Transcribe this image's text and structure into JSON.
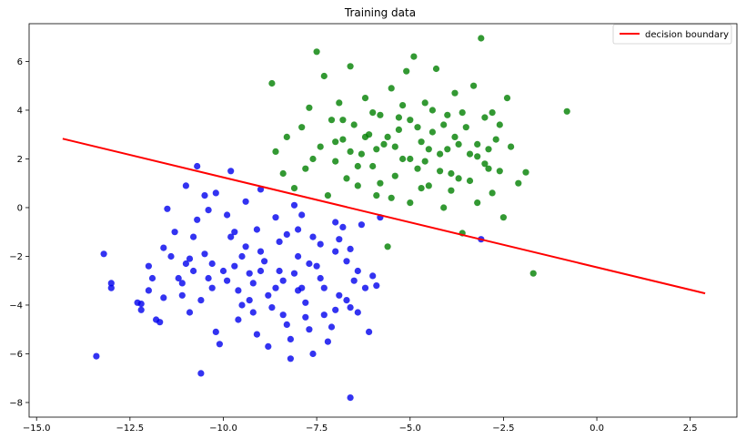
{
  "chart_data": {
    "type": "scatter",
    "title": "Training data",
    "xlabel": "",
    "ylabel": "",
    "xlim": [
      -15.2,
      3.75
    ],
    "ylim": [
      -8.6,
      7.55
    ],
    "x_ticks": [
      -15.0,
      -12.5,
      -10.0,
      -7.5,
      -5.0,
      -2.5,
      0.0,
      2.5
    ],
    "x_tick_labels": [
      "−15.0",
      "−12.5",
      "−10.0",
      "−7.5",
      "−5.0",
      "−2.5",
      "0.0",
      "2.5"
    ],
    "y_ticks": [
      -8,
      -6,
      -4,
      -2,
      0,
      2,
      4,
      6
    ],
    "y_tick_labels": [
      "−8",
      "−6",
      "−4",
      "−2",
      "0",
      "2",
      "4",
      "6"
    ],
    "grid": false,
    "legend_position": "top-right",
    "legend": [
      {
        "label": "decision boundary",
        "color": "#ff0000",
        "kind": "line"
      }
    ],
    "line": {
      "name": "decision boundary",
      "color": "#ff0000",
      "x": [
        -14.3,
        2.9
      ],
      "y": [
        2.83,
        -3.52
      ]
    },
    "series": [
      {
        "color": "#0000ee",
        "points": [
          [
            -13.4,
            -6.1
          ],
          [
            -13.2,
            -1.9
          ],
          [
            -13.0,
            -3.1
          ],
          [
            -13.0,
            -3.3
          ],
          [
            -12.2,
            -4.2
          ],
          [
            -12.2,
            -3.95
          ],
          [
            -12.0,
            -2.4
          ],
          [
            -12.0,
            -3.4
          ],
          [
            -11.8,
            -4.6
          ],
          [
            -11.7,
            -4.7
          ],
          [
            -11.6,
            -1.65
          ],
          [
            -11.5,
            -0.05
          ],
          [
            -11.2,
            -2.9
          ],
          [
            -11.1,
            -3.6
          ],
          [
            -11.0,
            0.9
          ],
          [
            -11.0,
            -2.3
          ],
          [
            -10.9,
            -2.1
          ],
          [
            -10.8,
            -2.6
          ],
          [
            -10.7,
            1.7
          ],
          [
            -10.7,
            -0.5
          ],
          [
            -10.6,
            -6.8
          ],
          [
            -10.5,
            0.5
          ],
          [
            -10.5,
            -1.9
          ],
          [
            -10.4,
            -2.9
          ],
          [
            -10.3,
            -3.3
          ],
          [
            -10.2,
            -5.1
          ],
          [
            -10.2,
            0.6
          ],
          [
            -10.0,
            -2.6
          ],
          [
            -9.9,
            -3.0
          ],
          [
            -9.8,
            1.5
          ],
          [
            -9.8,
            -1.2
          ],
          [
            -9.7,
            -2.4
          ],
          [
            -9.6,
            -3.4
          ],
          [
            -9.5,
            -4.0
          ],
          [
            -9.4,
            0.25
          ],
          [
            -9.4,
            -1.6
          ],
          [
            -9.3,
            -2.7
          ],
          [
            -9.2,
            -3.1
          ],
          [
            -9.1,
            -5.2
          ],
          [
            -9.0,
            0.75
          ],
          [
            -9.0,
            -1.8
          ],
          [
            -8.9,
            -2.2
          ],
          [
            -8.8,
            -3.6
          ],
          [
            -8.7,
            -4.1
          ],
          [
            -8.6,
            -0.4
          ],
          [
            -8.5,
            -1.4
          ],
          [
            -8.5,
            -2.6
          ],
          [
            -8.4,
            -3.0
          ],
          [
            -8.3,
            -4.8
          ],
          [
            -8.2,
            -6.2
          ],
          [
            -8.1,
            0.1
          ],
          [
            -8.0,
            -0.9
          ],
          [
            -8.0,
            -2.0
          ],
          [
            -7.9,
            -3.3
          ],
          [
            -7.8,
            -3.9
          ],
          [
            -7.7,
            -5.0
          ],
          [
            -7.6,
            -1.2
          ],
          [
            -7.5,
            -2.4
          ],
          [
            -7.4,
            -2.9
          ],
          [
            -7.3,
            -4.4
          ],
          [
            -7.2,
            -5.5
          ],
          [
            -7.0,
            -0.6
          ],
          [
            -7.0,
            -1.8
          ],
          [
            -6.9,
            -3.6
          ],
          [
            -6.8,
            -0.8
          ],
          [
            -6.7,
            -2.2
          ],
          [
            -6.6,
            -4.1
          ],
          [
            -6.6,
            -7.8
          ],
          [
            -6.5,
            -3.0
          ],
          [
            -6.3,
            -0.7
          ],
          [
            -6.2,
            -3.3
          ],
          [
            -6.1,
            -5.1
          ],
          [
            -6.0,
            -2.8
          ],
          [
            -5.9,
            -3.2
          ],
          [
            -5.8,
            -0.4
          ],
          [
            -3.1,
            -1.3
          ],
          [
            -11.3,
            -1.0
          ],
          [
            -10.9,
            -4.3
          ],
          [
            -10.1,
            -5.6
          ],
          [
            -9.6,
            -4.6
          ],
          [
            -8.8,
            -5.7
          ],
          [
            -8.2,
            -5.4
          ],
          [
            -7.6,
            -6.0
          ],
          [
            -7.1,
            -4.9
          ],
          [
            -6.4,
            -4.3
          ],
          [
            -11.4,
            -2.0
          ],
          [
            -9.9,
            -0.3
          ],
          [
            -9.1,
            -0.9
          ],
          [
            -8.3,
            -1.1
          ],
          [
            -7.9,
            -0.3
          ],
          [
            -7.4,
            -1.5
          ],
          [
            -6.9,
            -1.3
          ],
          [
            -10.6,
            -3.8
          ],
          [
            -9.3,
            -3.8
          ],
          [
            -8.0,
            -3.4
          ],
          [
            -6.6,
            -1.7
          ],
          [
            -12.3,
            -3.9
          ],
          [
            -11.9,
            -2.9
          ],
          [
            -11.6,
            -3.7
          ],
          [
            -10.8,
            -1.2
          ],
          [
            -10.4,
            -0.1
          ],
          [
            -9.7,
            -1.0
          ],
          [
            -9.5,
            -2.0
          ],
          [
            -9.0,
            -2.6
          ],
          [
            -8.6,
            -3.3
          ],
          [
            -8.1,
            -2.7
          ],
          [
            -7.7,
            -2.3
          ],
          [
            -7.3,
            -3.3
          ],
          [
            -7.0,
            -4.2
          ],
          [
            -6.7,
            -3.8
          ],
          [
            -6.4,
            -2.6
          ],
          [
            -11.1,
            -3.1
          ],
          [
            -10.3,
            -2.3
          ],
          [
            -9.2,
            -4.3
          ],
          [
            -8.4,
            -4.4
          ],
          [
            -7.8,
            -4.5
          ]
        ]
      },
      {
        "color": "#008000",
        "points": [
          [
            -8.7,
            5.1
          ],
          [
            -8.6,
            2.3
          ],
          [
            -8.4,
            1.4
          ],
          [
            -8.3,
            2.9
          ],
          [
            -8.1,
            0.8
          ],
          [
            -7.9,
            3.3
          ],
          [
            -7.8,
            1.6
          ],
          [
            -7.7,
            4.1
          ],
          [
            -7.5,
            6.4
          ],
          [
            -7.4,
            2.5
          ],
          [
            -7.3,
            5.4
          ],
          [
            -7.2,
            0.5
          ],
          [
            -7.1,
            3.6
          ],
          [
            -7.0,
            1.9
          ],
          [
            -6.9,
            4.3
          ],
          [
            -6.8,
            2.8
          ],
          [
            -6.7,
            1.2
          ],
          [
            -6.6,
            5.8
          ],
          [
            -6.5,
            3.4
          ],
          [
            -6.4,
            0.9
          ],
          [
            -6.3,
            2.2
          ],
          [
            -6.2,
            4.5
          ],
          [
            -6.1,
            3.0
          ],
          [
            -6.0,
            1.7
          ],
          [
            -5.9,
            0.5
          ],
          [
            -5.8,
            3.8
          ],
          [
            -5.7,
            2.6
          ],
          [
            -5.6,
            -1.6
          ],
          [
            -5.5,
            4.9
          ],
          [
            -5.4,
            1.3
          ],
          [
            -5.3,
            3.2
          ],
          [
            -5.2,
            2.0
          ],
          [
            -5.1,
            5.6
          ],
          [
            -5.0,
            0.2
          ],
          [
            -5.0,
            3.6
          ],
          [
            -4.9,
            6.2
          ],
          [
            -4.8,
            1.6
          ],
          [
            -4.7,
            2.7
          ],
          [
            -4.6,
            4.3
          ],
          [
            -4.5,
            0.9
          ],
          [
            -4.4,
            3.1
          ],
          [
            -4.3,
            5.7
          ],
          [
            -4.2,
            2.2
          ],
          [
            -4.1,
            0.0
          ],
          [
            -4.0,
            3.8
          ],
          [
            -3.9,
            1.4
          ],
          [
            -3.8,
            4.7
          ],
          [
            -3.7,
            2.6
          ],
          [
            -3.6,
            -1.05
          ],
          [
            -3.5,
            3.3
          ],
          [
            -3.4,
            1.1
          ],
          [
            -3.3,
            5.0
          ],
          [
            -3.2,
            2.1
          ],
          [
            -3.1,
            6.95
          ],
          [
            -3.0,
            3.7
          ],
          [
            -2.9,
            1.6
          ],
          [
            -2.8,
            0.6
          ],
          [
            -2.7,
            2.8
          ],
          [
            -2.6,
            3.4
          ],
          [
            -2.5,
            -0.4
          ],
          [
            -2.4,
            4.5
          ],
          [
            -2.3,
            2.5
          ],
          [
            -2.1,
            1.0
          ],
          [
            -1.9,
            1.45
          ],
          [
            -1.7,
            -2.7
          ],
          [
            -0.8,
            3.95
          ],
          [
            -7.6,
            2.0
          ],
          [
            -6.8,
            3.6
          ],
          [
            -6.2,
            2.9
          ],
          [
            -5.8,
            1.0
          ],
          [
            -5.4,
            2.5
          ],
          [
            -5.0,
            2.0
          ],
          [
            -4.6,
            1.9
          ],
          [
            -4.2,
            1.5
          ],
          [
            -3.8,
            2.9
          ],
          [
            -3.4,
            2.2
          ],
          [
            -3.0,
            1.8
          ],
          [
            -7.0,
            2.7
          ],
          [
            -6.0,
            3.9
          ],
          [
            -5.2,
            4.2
          ],
          [
            -4.4,
            4.0
          ],
          [
            -3.6,
            3.9
          ],
          [
            -2.8,
            3.9
          ],
          [
            -5.6,
            2.9
          ],
          [
            -4.8,
            3.3
          ],
          [
            -4.0,
            2.4
          ],
          [
            -3.2,
            2.6
          ],
          [
            -6.4,
            1.7
          ],
          [
            -5.5,
            0.4
          ],
          [
            -4.7,
            0.8
          ],
          [
            -3.9,
            0.7
          ],
          [
            -3.2,
            0.2
          ],
          [
            -2.6,
            1.5
          ],
          [
            -6.6,
            2.3
          ],
          [
            -5.3,
            3.7
          ],
          [
            -4.5,
            2.4
          ],
          [
            -3.7,
            1.2
          ],
          [
            -2.9,
            2.4
          ],
          [
            -5.9,
            2.4
          ],
          [
            -4.1,
            3.4
          ]
        ]
      }
    ]
  }
}
